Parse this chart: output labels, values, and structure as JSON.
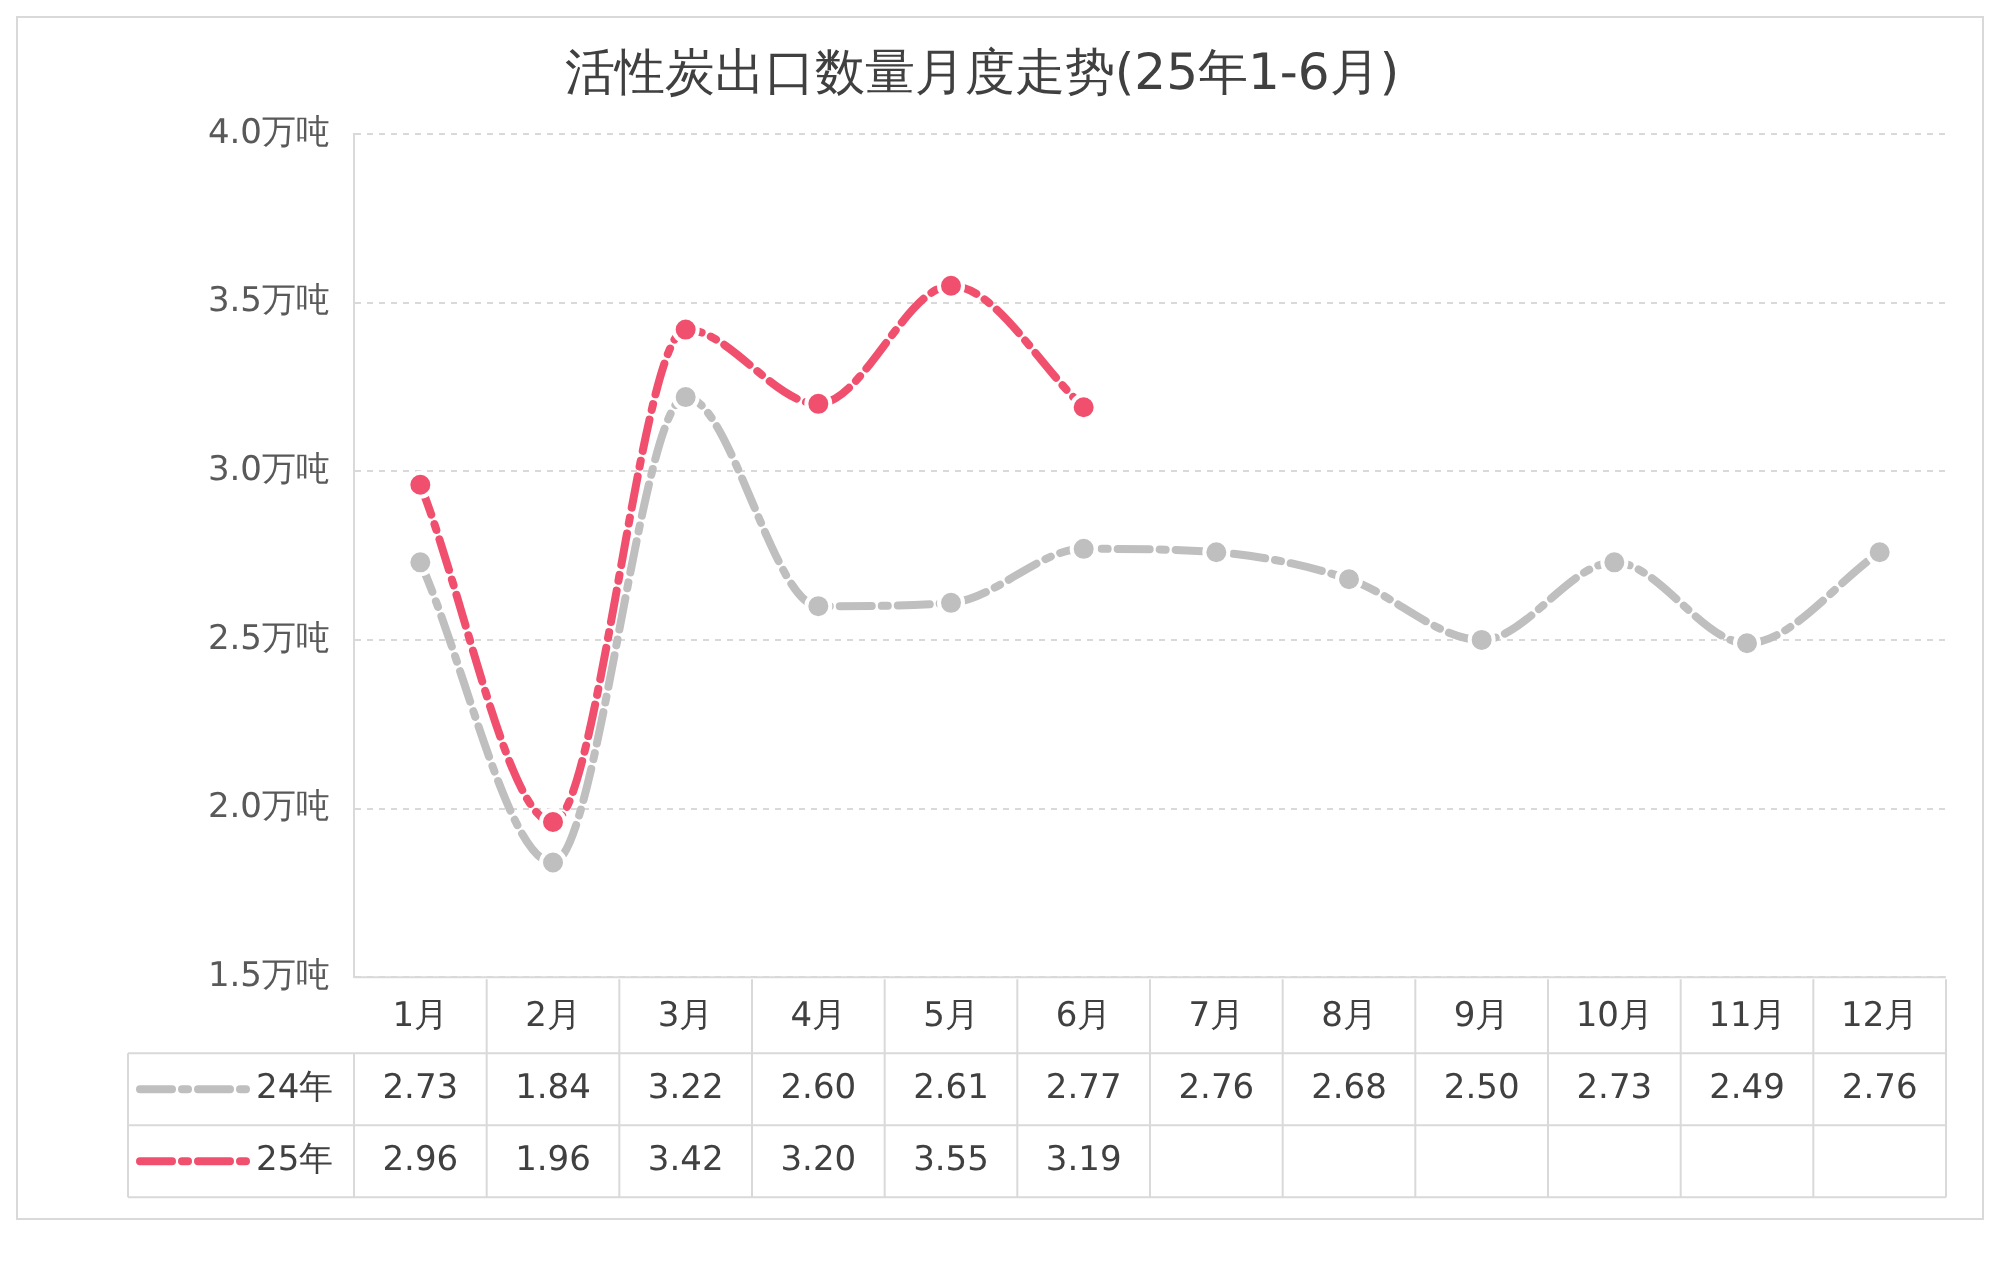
{
  "chart_data": {
    "type": "line",
    "title": "活性炭出口数量月度走势(25年1-6月)",
    "categories": [
      "1月",
      "2月",
      "3月",
      "4月",
      "5月",
      "6月",
      "7月",
      "8月",
      "9月",
      "10月",
      "11月",
      "12月"
    ],
    "series": [
      {
        "name": "24年",
        "color": "#bfbfbf",
        "values": [
          2.73,
          1.84,
          3.22,
          2.6,
          2.61,
          2.77,
          2.76,
          2.68,
          2.5,
          2.73,
          2.49,
          2.76
        ],
        "value_labels": [
          "2.73",
          "1.84",
          "3.22",
          "2.60",
          "2.61",
          "2.77",
          "2.76",
          "2.68",
          "2.50",
          "2.73",
          "2.49",
          "2.76"
        ]
      },
      {
        "name": "25年",
        "color": "#f0506e",
        "values": [
          2.96,
          1.96,
          3.42,
          3.2,
          3.55,
          3.19,
          null,
          null,
          null,
          null,
          null,
          null
        ],
        "value_labels": [
          "2.96",
          "1.96",
          "3.42",
          "3.20",
          "3.55",
          "3.19",
          null,
          null,
          null,
          null,
          null,
          null
        ]
      }
    ],
    "ylim": [
      1.5,
      4.0
    ],
    "yticks": [
      {
        "value": 1.5,
        "label": "1.5万吨"
      },
      {
        "value": 2.0,
        "label": "2.0万吨"
      },
      {
        "value": 2.5,
        "label": "2.5万吨"
      },
      {
        "value": 3.0,
        "label": "3.0万吨"
      },
      {
        "value": 3.5,
        "label": "3.5万吨"
      },
      {
        "value": 4.0,
        "label": "4.0万吨"
      }
    ],
    "grid": "y",
    "legend": "bottom",
    "marker": "circle",
    "line_style": "dashed"
  }
}
